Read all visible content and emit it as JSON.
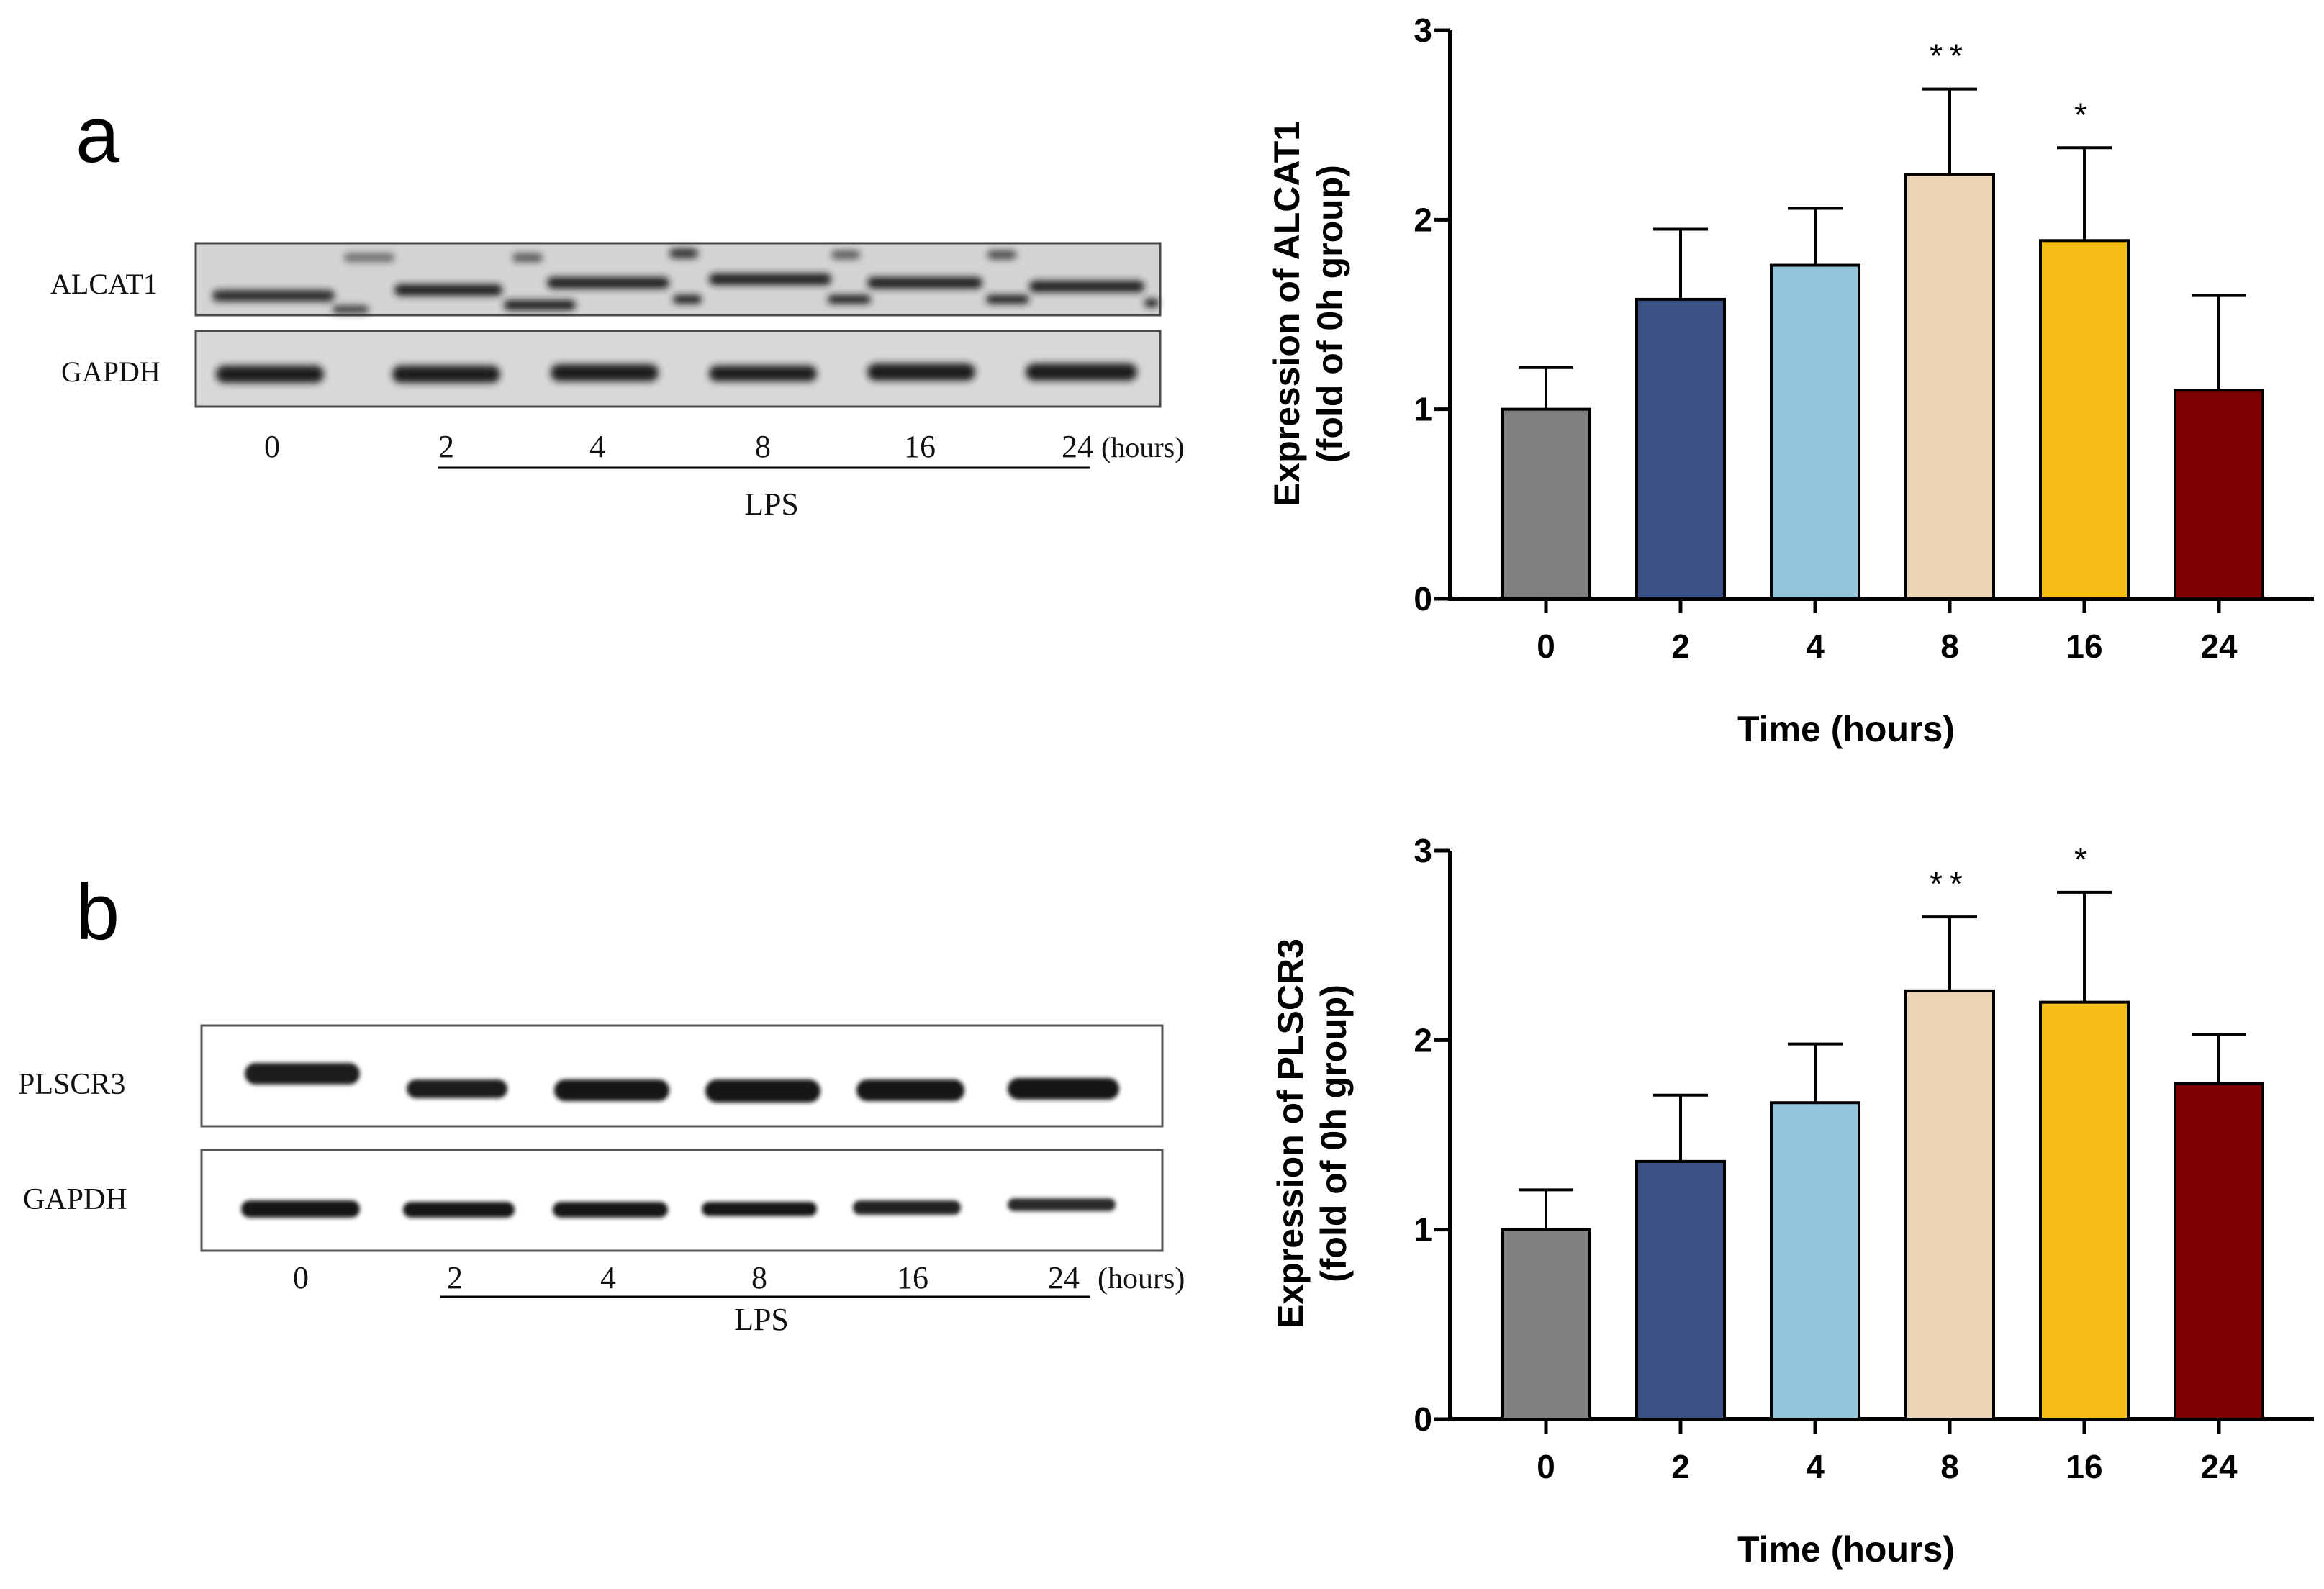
{
  "panels": {
    "a": {
      "letter": "a",
      "blot": {
        "bands": [
          "ALCAT1",
          "GAPDH"
        ],
        "lanes": [
          "0",
          "2",
          "4",
          "8",
          "16",
          "24"
        ],
        "unit": "(hours)",
        "treatment": "LPS"
      }
    },
    "b": {
      "letter": "b",
      "blot": {
        "bands": [
          "PLSCR3",
          "GAPDH"
        ],
        "lanes": [
          "0",
          "2",
          "4",
          "8",
          "16",
          "24"
        ],
        "unit": "(hours)",
        "treatment": "LPS"
      }
    }
  },
  "colors": [
    "#808080",
    "#3a5184",
    "#92c5dc",
    "#ecd5b7",
    "#f6bd16",
    "#7c0000"
  ],
  "chart_data": [
    {
      "type": "bar",
      "categories": [
        "0",
        "2",
        "4",
        "8",
        "16",
        "24"
      ],
      "values": [
        1.0,
        1.58,
        1.76,
        2.24,
        1.89,
        1.1
      ],
      "errors": [
        0.22,
        0.37,
        0.3,
        0.45,
        0.49,
        0.5
      ],
      "significance": [
        "",
        "",
        "",
        "**",
        "*",
        ""
      ],
      "ylabel_line1": "Expression of  ALCAT1",
      "ylabel_line2": "(fold of 0h group)",
      "xlabel": "Time (hours)",
      "ylim": [
        0,
        3
      ],
      "yticks": [
        "0",
        "1",
        "2",
        "3"
      ]
    },
    {
      "type": "bar",
      "categories": [
        "0",
        "2",
        "4",
        "8",
        "16",
        "24"
      ],
      "values": [
        1.0,
        1.36,
        1.67,
        2.26,
        2.2,
        1.77
      ],
      "errors": [
        0.21,
        0.35,
        0.31,
        0.39,
        0.58,
        0.26
      ],
      "significance": [
        "",
        "",
        "",
        "**",
        "*",
        ""
      ],
      "ylabel_line1": "Expression of  PLSCR3",
      "ylabel_line2": "(fold of 0h group)",
      "xlabel": "Time (hours)",
      "ylim": [
        0,
        3
      ],
      "yticks": [
        "0",
        "1",
        "2",
        "3"
      ]
    }
  ]
}
